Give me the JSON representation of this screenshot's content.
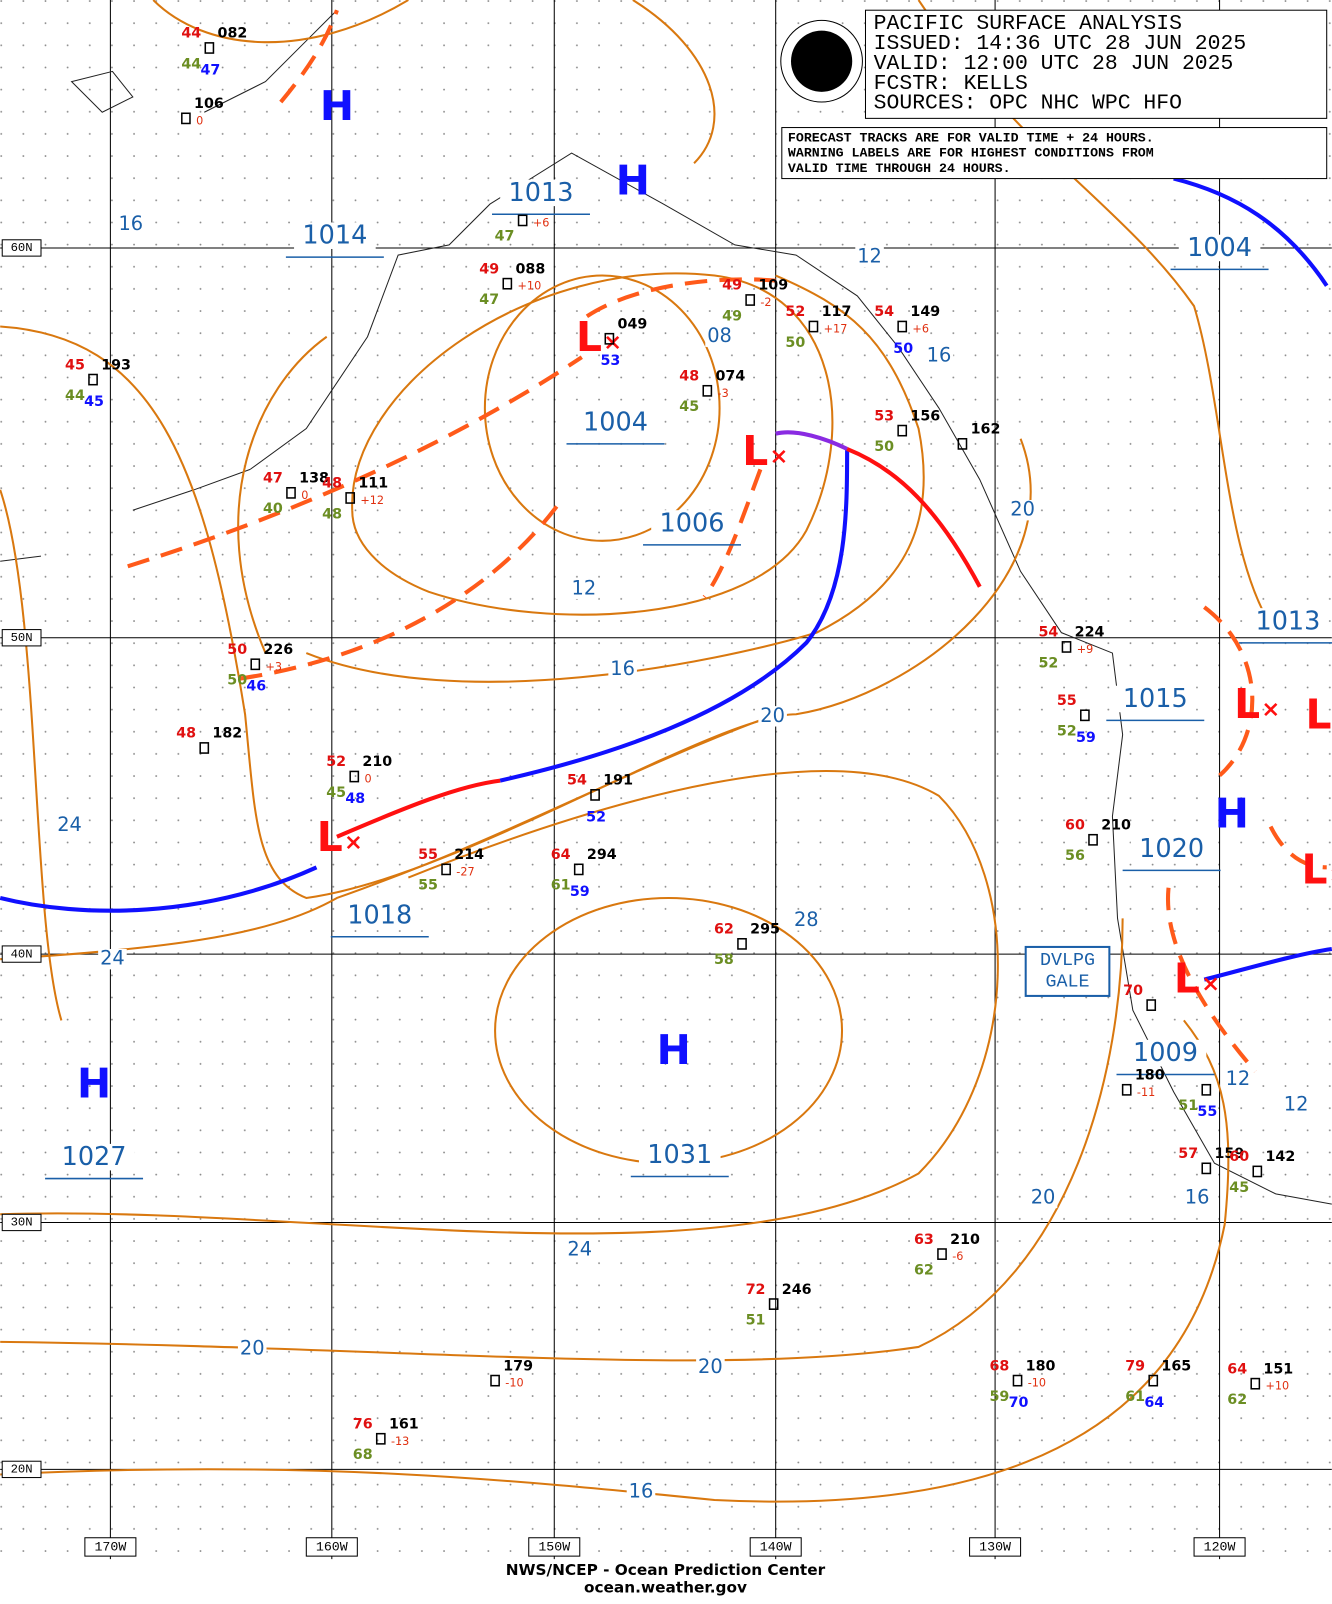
{
  "header": {
    "lines": [
      "PACIFIC SURFACE ANALYSIS",
      "ISSUED: 14:36 UTC 28 JUN 2025",
      "VALID:  12:00 UTC 28 JUN 2025",
      "FCSTR:  KELLS",
      "SOURCES: OPC NHC WPC HFO"
    ],
    "note": [
      "FORECAST TRACKS ARE FOR VALID TIME + 24 HOURS.",
      "WARNING LABELS ARE FOR HIGHEST CONDITIONS FROM",
      "VALID TIME THROUGH 24 HOURS."
    ],
    "logo": "NOAA"
  },
  "latitude_labels": [
    "60N",
    "50N",
    "40N",
    "30N",
    "20N"
  ],
  "longitude_labels": [
    "170W",
    "160W",
    "150W",
    "140W",
    "130W",
    "120W"
  ],
  "symbols": [
    "H",
    "H",
    "L",
    "L",
    "L",
    "H",
    "H",
    "H",
    "L",
    "L",
    "L",
    "L"
  ],
  "pressure_labels": [
    "1014",
    "1013",
    "1004",
    "1006",
    "1018",
    "1031",
    "1027",
    "1004",
    "1013",
    "1015",
    "1020",
    "1009"
  ],
  "isobar_labels": [
    "16",
    "12",
    "08",
    "16",
    "20",
    "12",
    "16",
    "20",
    "24",
    "24",
    "28",
    "12",
    "12",
    "16",
    "20",
    "24",
    "20",
    "20",
    "16"
  ],
  "warning": [
    "DVLPG",
    "GALE"
  ],
  "stations": [
    {
      "temp": "44",
      "pressure": "082",
      "dew": "44",
      "extra": "47"
    },
    {
      "pressure": "106",
      "tendency": "0"
    },
    {
      "temp": "45",
      "pressure": "193",
      "dew": "44",
      "extra": "45"
    },
    {
      "temp": "47",
      "pressure": "138",
      "dew": "40",
      "tendency": "0"
    },
    {
      "temp": "48",
      "pressure": "111",
      "dew": "48",
      "tendency": "+12"
    },
    {
      "dew": "47",
      "tendency": "+6"
    },
    {
      "temp": "49",
      "pressure": "088",
      "dew": "47",
      "tendency": "+10"
    },
    {
      "pressure": "049",
      "extra": "53"
    },
    {
      "temp": "49",
      "pressure": "109",
      "dew": "49",
      "tendency": "-2"
    },
    {
      "temp": "52",
      "pressure": "117",
      "dew": "50",
      "tendency": "+17"
    },
    {
      "temp": "54",
      "pressure": "149",
      "extra": "50",
      "tendency": "+6"
    },
    {
      "temp": "48",
      "pressure": "074",
      "dew": "45",
      "tendency": "-3"
    },
    {
      "temp": "53",
      "pressure": "156",
      "dew": "50"
    },
    {
      "pressure": "162"
    },
    {
      "temp": "50",
      "pressure": "226",
      "dew": "50",
      "extra": "46",
      "tendency": "+3"
    },
    {
      "temp": "48",
      "pressure": "182"
    },
    {
      "temp": "52",
      "pressure": "210",
      "dew": "45",
      "extra": "48",
      "tendency": "0"
    },
    {
      "temp": "54",
      "pressure": "191",
      "extra": "52"
    },
    {
      "temp": "55",
      "pressure": "214",
      "dew": "55",
      "tendency": "-27"
    },
    {
      "temp": "64",
      "pressure": "294",
      "dew": "61",
      "extra": "59"
    },
    {
      "temp": "62",
      "pressure": "295",
      "dew": "58"
    },
    {
      "temp": "54",
      "pressure": "224",
      "dew": "52",
      "tendency": "+9"
    },
    {
      "temp": "55",
      "dew": "52",
      "extra": "59"
    },
    {
      "temp": "60",
      "pressure": "210",
      "dew": "56"
    },
    {
      "temp": "63",
      "pressure": "210",
      "dew": "62",
      "tendency": "-6"
    },
    {
      "temp": "72",
      "pressure": "246",
      "dew": "51"
    },
    {
      "pressure": "179",
      "tendency": "-10"
    },
    {
      "temp": "76",
      "pressure": "161",
      "dew": "68",
      "tendency": "-13"
    },
    {
      "temp": "68",
      "pressure": "180",
      "dew": "59",
      "extra": "70",
      "tendency": "-10"
    },
    {
      "temp": "79",
      "pressure": "165",
      "dew": "61",
      "extra": "64"
    },
    {
      "temp": "64",
      "pressure": "151",
      "dew": "62",
      "tendency": "+10"
    },
    {
      "temp": "57",
      "pressure": "159"
    },
    {
      "temp": "60",
      "pressure": "142",
      "dew": "45"
    },
    {
      "pressure": "180",
      "tendency": "-11"
    },
    {
      "dew": "51",
      "extra": "55"
    },
    {
      "temp": "70"
    }
  ],
  "footer": [
    "NWS/NCEP - Ocean Prediction Center",
    "ocean.weather.gov"
  ]
}
